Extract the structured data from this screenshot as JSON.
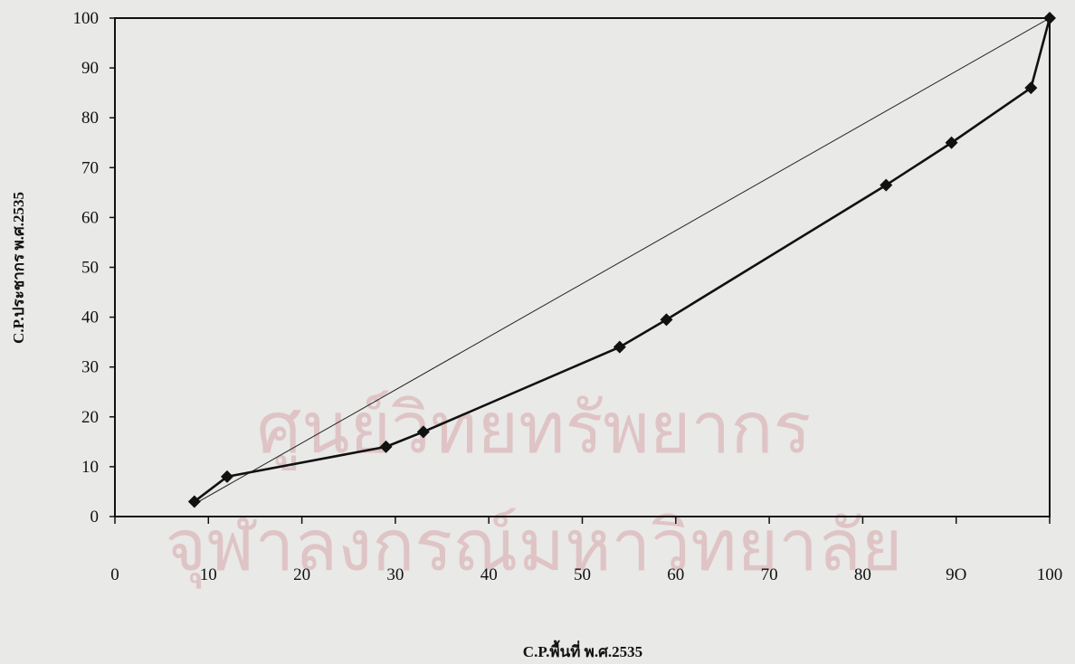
{
  "watermark": {
    "line1": "ศูนย์วิทยทรัพยากร",
    "line2": "จุฬาลงกรณ์มหาวิทยาลัย"
  },
  "chart_data": {
    "type": "line",
    "xlabel": "C.P.พื้นที่ พ.ศ.2535",
    "ylabel": "C.P.ประชากร พ.ศ.2535",
    "xlim": [
      0,
      100
    ],
    "ylim": [
      0,
      100
    ],
    "x_ticks": [
      0,
      10,
      20,
      30,
      40,
      50,
      60,
      70,
      80,
      90,
      100
    ],
    "x_tick_labels": [
      "0",
      "10",
      "20",
      "30",
      "40",
      "50",
      "60",
      "70",
      "80",
      "9O",
      "100"
    ],
    "y_ticks": [
      0,
      10,
      20,
      30,
      40,
      50,
      60,
      70,
      80,
      90,
      100
    ],
    "y_tick_labels": [
      "0",
      "10",
      "20",
      "30",
      "40",
      "50",
      "60",
      "70",
      "80",
      "90",
      "100"
    ],
    "grid": false,
    "legend": "none",
    "colors": {
      "line": "#111111",
      "equality": "#222222"
    },
    "series": [
      {
        "x": [
          8.5,
          12,
          29,
          33,
          54,
          59,
          82.5,
          89.5,
          98,
          100
        ],
        "y": [
          3,
          8,
          14,
          17,
          34,
          39.5,
          66.5,
          75,
          86,
          100
        ],
        "marker": "diamond"
      },
      {
        "x": [
          8.5,
          100
        ],
        "y": [
          2.5,
          100
        ],
        "marker": "none"
      }
    ]
  }
}
